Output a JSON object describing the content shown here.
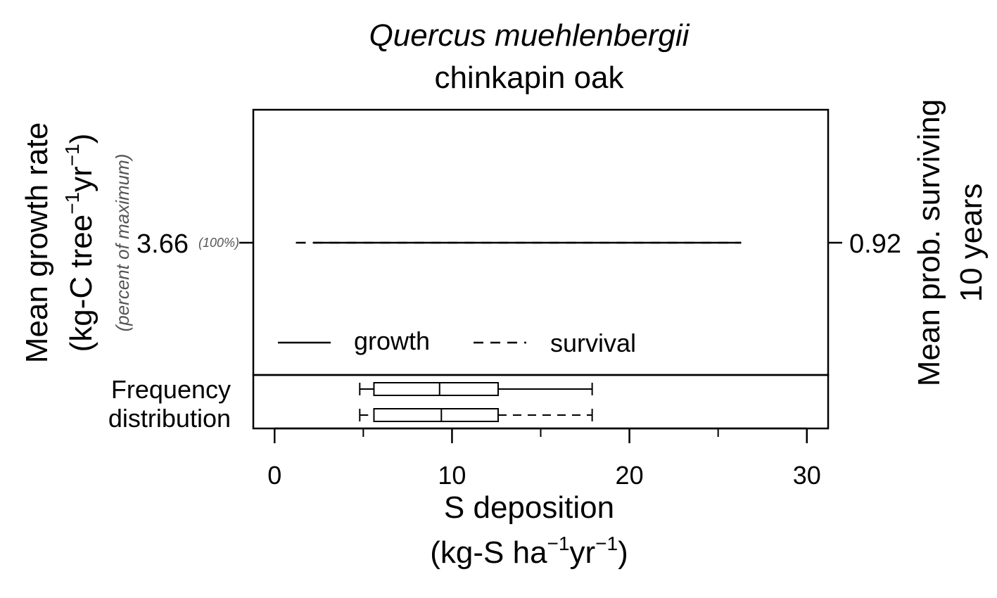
{
  "chart_data": {
    "type": "line",
    "title": "Quercus muehlenbergii",
    "subtitle": "chinkapin oak",
    "xlabel": {
      "line1": "S deposition",
      "line2_pre": "(kg-S ha",
      "sup1": "−1",
      "line2_mid": "yr",
      "sup2": "−1",
      "line2_post": ")"
    },
    "ylabel_left": {
      "line1": "Mean growth rate",
      "line2_pre": "(kg-C tree",
      "sup1": "−1",
      "line2_mid": "yr",
      "sup2": "−1",
      "line2_post": ")",
      "note": "(percent of maximum)"
    },
    "ylabel_right": {
      "line1": "Mean prob. surviving",
      "line2": "10 years"
    },
    "xlim": [
      -1.2,
      31.2
    ],
    "x_ticks": [
      0,
      10,
      20,
      30
    ],
    "x_minor_ticks": [
      5,
      15,
      25
    ],
    "left_tick": {
      "value": 3.66,
      "label": "3.66",
      "pct_label": "(100%)"
    },
    "right_tick": {
      "value": 0.92,
      "label": "0.92"
    },
    "series": [
      {
        "name": "growth",
        "style": "solid",
        "x": [
          2.2,
          26.3
        ],
        "y": [
          3.66,
          3.66
        ]
      },
      {
        "name": "survival",
        "style": "dashed",
        "x": [
          1.2,
          26.3
        ],
        "y": [
          0.92,
          0.92
        ]
      }
    ],
    "legend": {
      "position": "bottom-left",
      "growth": "growth",
      "survival": "survival"
    },
    "frequency_label": {
      "line1": "Frequency",
      "line2": "distribution"
    },
    "boxplots": [
      {
        "series": "growth",
        "style": "solid",
        "min": 4.8,
        "q1": 5.6,
        "median": 9.3,
        "q3": 12.6,
        "max": 17.9
      },
      {
        "series": "survival",
        "style": "dashed",
        "min": 4.8,
        "q1": 5.6,
        "median": 9.4,
        "q3": 12.6,
        "max": 17.9
      }
    ],
    "colors": {
      "line": "#000000",
      "note": "#555555"
    }
  }
}
